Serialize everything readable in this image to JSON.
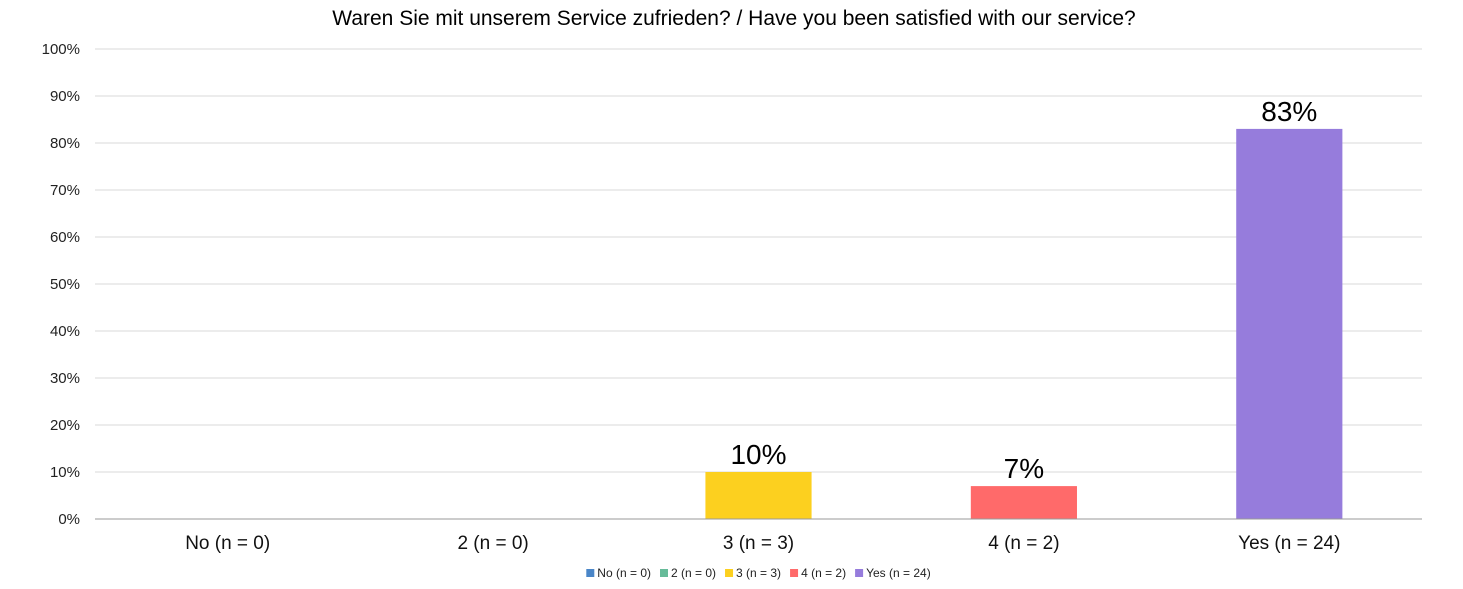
{
  "chart_data": {
    "type": "bar",
    "title": "Waren Sie mit unserem Service zufrieden? / Have you been satisfied with our service?",
    "categories": [
      "No (n = 0)",
      "2 (n = 0)",
      "3 (n = 3)",
      "4 (n = 2)",
      "Yes (n = 24)"
    ],
    "values": [
      0,
      0,
      10,
      7,
      83
    ],
    "data_labels": [
      "",
      "",
      "10%",
      "7%",
      "83%"
    ],
    "colors": [
      "#4a86c8",
      "#66bb99",
      "#fcd01f",
      "#ff6a6a",
      "#967cdc"
    ],
    "ylim": [
      0,
      100
    ],
    "yticks": [
      0,
      10,
      20,
      30,
      40,
      50,
      60,
      70,
      80,
      90,
      100
    ],
    "ytick_labels": [
      "0%",
      "10%",
      "20%",
      "30%",
      "40%",
      "50%",
      "60%",
      "70%",
      "80%",
      "90%",
      "100%"
    ],
    "xlabel": "",
    "ylabel": "",
    "grid": true,
    "legend": {
      "placement": "bottom",
      "entries": [
        "No (n = 0)",
        "2 (n = 0)",
        "3 (n = 3)",
        "4 (n = 2)",
        "Yes (n = 24)"
      ]
    }
  }
}
